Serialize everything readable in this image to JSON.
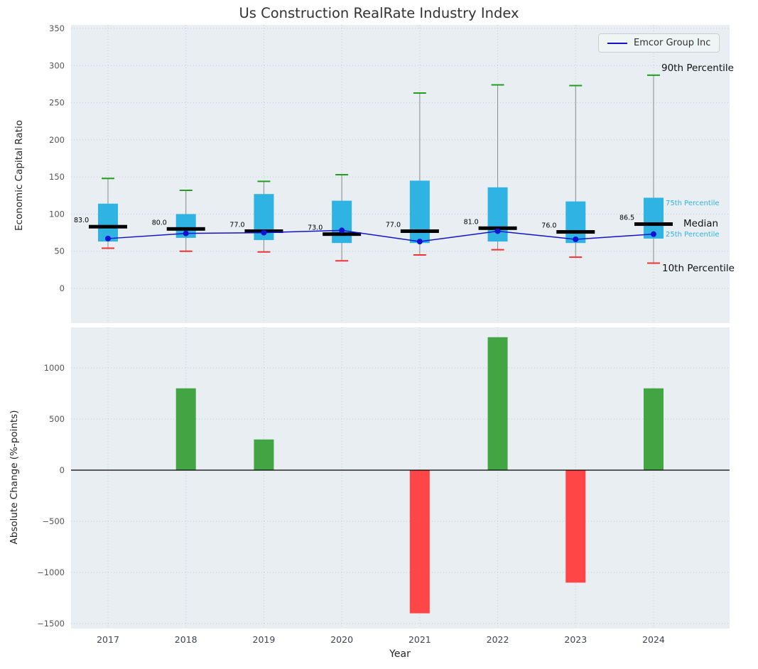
{
  "colors": {
    "panel_bg": "#e9eef2",
    "grid": "#c3ccd3",
    "box_fill": "#2fb3e3",
    "median": "#000000",
    "p90_cap": "#1f9e1f",
    "p10_cap": "#f03232",
    "whisker": "#8a8a8a",
    "emcor_line": "#1212d0",
    "bar_positive": "#43a443",
    "bar_negative": "#ff4646",
    "zero_line": "#000000"
  },
  "chart_data": [
    {
      "type": "boxplot",
      "title": "Us Construction RealRate Industry Index",
      "ylabel": "Economic Capital Ratio",
      "yticks": [
        0,
        50,
        100,
        150,
        200,
        250,
        300,
        350
      ],
      "ylim": [
        -47,
        355
      ],
      "grid": true,
      "categories": [
        "2017",
        "2018",
        "2019",
        "2020",
        "2021",
        "2022",
        "2023",
        "2024"
      ],
      "boxes": [
        {
          "p10": 54,
          "p25": 63,
          "median": 83.0,
          "p75": 114,
          "p90": 148
        },
        {
          "p10": 50,
          "p25": 68,
          "median": 80.0,
          "p75": 100,
          "p90": 132
        },
        {
          "p10": 49,
          "p25": 65,
          "median": 77.0,
          "p75": 127,
          "p90": 144
        },
        {
          "p10": 37,
          "p25": 61,
          "median": 73.0,
          "p75": 118,
          "p90": 153
        },
        {
          "p10": 45,
          "p25": 61,
          "median": 77.0,
          "p75": 145,
          "p90": 263
        },
        {
          "p10": 52,
          "p25": 63,
          "median": 81.0,
          "p75": 136,
          "p90": 274
        },
        {
          "p10": 42,
          "p25": 61,
          "median": 76.0,
          "p75": 117,
          "p90": 273
        },
        {
          "p10": 34,
          "p25": 67,
          "median": 86.5,
          "p75": 122,
          "p90": 287
        }
      ],
      "median_labels": [
        "83.0",
        "80.0",
        "77.0",
        "73.0",
        "77.0",
        "81.0",
        "76.0",
        "86.5"
      ],
      "series": [
        {
          "name": "Emcor Group Inc",
          "values": [
            67,
            74,
            75,
            78,
            63,
            77,
            66,
            73
          ]
        }
      ],
      "legend": [
        "Emcor Group Inc"
      ],
      "legend_position": "upper right",
      "percentile_annotations": {
        "p90": "90th Percentile",
        "p75": "75th Percentile",
        "median": "Median",
        "p25": "25th Percentile",
        "p10": "10th Percentile"
      }
    },
    {
      "type": "bar",
      "ylabel": "Absolute Change (%-points)",
      "xlabel": "Year",
      "yticks": [
        -1500,
        -1000,
        -500,
        0,
        500,
        1000
      ],
      "ylim": [
        -1550,
        1400
      ],
      "grid": true,
      "categories": [
        "2017",
        "2018",
        "2019",
        "2020",
        "2021",
        "2022",
        "2023",
        "2024"
      ],
      "values": [
        0,
        800,
        300,
        0,
        -1400,
        1300,
        -1100,
        800
      ]
    }
  ]
}
